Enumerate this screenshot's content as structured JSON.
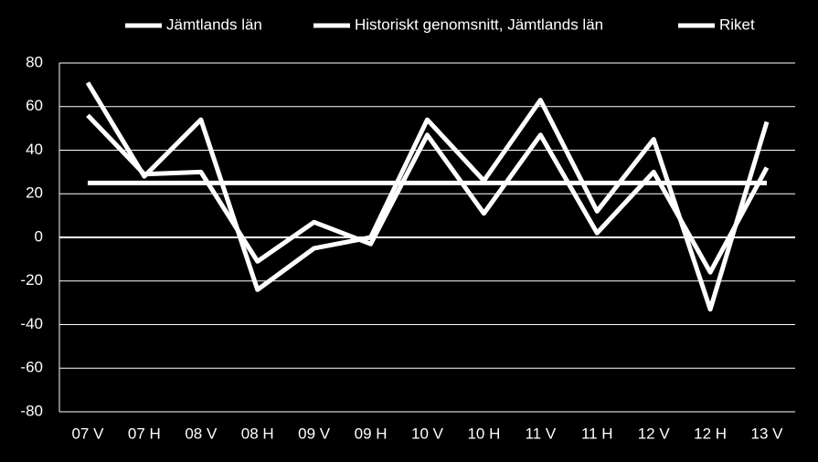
{
  "chart_data": {
    "type": "line",
    "categories": [
      "07 V",
      "07 H",
      "08 V",
      "08 H",
      "09 V",
      "09 H",
      "10 V",
      "10 H",
      "11 V",
      "11 H",
      "12 V",
      "12 H",
      "13 V"
    ],
    "series": [
      {
        "name": "Jämtlands län",
        "color": "#ffffff",
        "values": [
          71,
          28,
          54,
          -24,
          -5,
          0,
          54,
          26,
          63,
          12,
          45,
          -33,
          53
        ]
      },
      {
        "name": "Historiskt genomsnitt, Jämtlands län",
        "color": "#ffffff",
        "values": [
          25,
          25,
          25,
          25,
          25,
          25,
          25,
          25,
          25,
          25,
          25,
          25,
          25
        ]
      },
      {
        "name": "Riket",
        "color": "#ffffff",
        "values": [
          56,
          29,
          30,
          -11,
          7,
          -3,
          47,
          11,
          47,
          2,
          30,
          -16,
          32
        ]
      }
    ],
    "ylim": [
      -80,
      80
    ],
    "yticks": [
      -80,
      -60,
      -40,
      -20,
      0,
      20,
      40,
      60,
      80
    ],
    "grid": true,
    "legend": "top"
  }
}
